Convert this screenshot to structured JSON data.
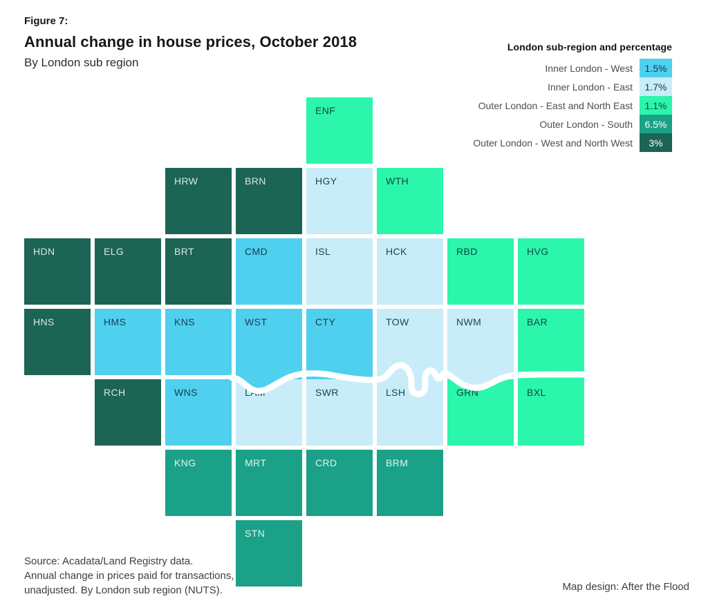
{
  "header": {
    "figure_label": "Figure 7:",
    "title": "Annual change in house prices, October 2018",
    "subtitle": "By London sub region"
  },
  "legend": {
    "title": "London sub-region and percentage"
  },
  "footer": {
    "source_lines": [
      "Source: Acadata/Land Registry data.",
      "Annual change in prices paid for transactions,",
      "unadjusted. By London sub region (NUTS)."
    ],
    "credit": "Map design: After the Flood"
  },
  "chart_data": {
    "type": "heatmap",
    "variant": "tile-cartogram-map",
    "title": "Annual change in house prices, October 2018",
    "subtitle": "By London sub region",
    "legend_title": "London sub-region and percentage",
    "unit": "percent annual change in house prices",
    "legend_position": "top-right",
    "series": [
      {
        "name": "Inner London - West",
        "value": 1.5,
        "value_label": "1.5%",
        "color": "#4fd0ee",
        "label_color": "#173d52",
        "legend_text_color": "#13384e",
        "boroughs": [
          "HMS",
          "KNS",
          "CMD",
          "WST",
          "CTY",
          "WNS"
        ]
      },
      {
        "name": "Inner London - East",
        "value": 1.7,
        "value_label": "1.7%",
        "color": "#c9ecf9",
        "label_color": "#1d4357",
        "legend_text_color": "#13384e",
        "boroughs": [
          "HGY",
          "ISL",
          "HCK",
          "TOW",
          "NWM",
          "LAM",
          "SWR",
          "LSH"
        ]
      },
      {
        "name": "Outer London - East and North East",
        "value": 1.1,
        "value_label": "1.1%",
        "color": "#2cf5ac",
        "label_color": "#0e4a40",
        "legend_text_color": "#0e4a40",
        "boroughs": [
          "ENF",
          "WTH",
          "RBD",
          "HVG",
          "BAR",
          "GRN",
          "BXL"
        ]
      },
      {
        "name": "Outer London - South",
        "value": 6.5,
        "value_label": "6.5%",
        "color": "#1aa187",
        "label_color": "#e3f4ef",
        "legend_text_color": "#ffffff",
        "boroughs": [
          "KNG",
          "MRT",
          "CRD",
          "BRM",
          "STN"
        ]
      },
      {
        "name": "Outer London - West and North West",
        "value": 3,
        "value_label": "3%",
        "color": "#1c6454",
        "label_color": "#d9e8e4",
        "legend_text_color": "#ffffff",
        "boroughs": [
          "HRW",
          "BRN",
          "HDN",
          "ELG",
          "BRT",
          "HNS",
          "RCH"
        ]
      }
    ],
    "tiles": [
      {
        "code": "ENF",
        "col": 4,
        "row": 0,
        "region": 2
      },
      {
        "code": "HRW",
        "col": 2,
        "row": 1,
        "region": 4
      },
      {
        "code": "BRN",
        "col": 3,
        "row": 1,
        "region": 4
      },
      {
        "code": "HGY",
        "col": 4,
        "row": 1,
        "region": 1
      },
      {
        "code": "WTH",
        "col": 5,
        "row": 1,
        "region": 2
      },
      {
        "code": "HDN",
        "col": 0,
        "row": 2,
        "region": 4
      },
      {
        "code": "ELG",
        "col": 1,
        "row": 2,
        "region": 4
      },
      {
        "code": "BRT",
        "col": 2,
        "row": 2,
        "region": 4
      },
      {
        "code": "CMD",
        "col": 3,
        "row": 2,
        "region": 0
      },
      {
        "code": "ISL",
        "col": 4,
        "row": 2,
        "region": 1
      },
      {
        "code": "HCK",
        "col": 5,
        "row": 2,
        "region": 1
      },
      {
        "code": "RBD",
        "col": 6,
        "row": 2,
        "region": 2
      },
      {
        "code": "HVG",
        "col": 7,
        "row": 2,
        "region": 2
      },
      {
        "code": "HNS",
        "col": 0,
        "row": 3,
        "region": 4
      },
      {
        "code": "HMS",
        "col": 1,
        "row": 3,
        "region": 0
      },
      {
        "code": "KNS",
        "col": 2,
        "row": 3,
        "region": 0
      },
      {
        "code": "WST",
        "col": 3,
        "row": 3,
        "region": 0,
        "extend": true
      },
      {
        "code": "CTY",
        "col": 4,
        "row": 3,
        "region": 0,
        "extend": true
      },
      {
        "code": "TOW",
        "col": 5,
        "row": 3,
        "region": 1,
        "extend": true
      },
      {
        "code": "NWM",
        "col": 6,
        "row": 3,
        "region": 1,
        "extend": true
      },
      {
        "code": "BAR",
        "col": 7,
        "row": 3,
        "region": 2,
        "extend": true
      },
      {
        "code": "RCH",
        "col": 1,
        "row": 4,
        "region": 4
      },
      {
        "code": "WNS",
        "col": 2,
        "row": 4,
        "region": 0
      },
      {
        "code": "LAM",
        "col": 3,
        "row": 4,
        "region": 1
      },
      {
        "code": "SWR",
        "col": 4,
        "row": 4,
        "region": 1
      },
      {
        "code": "LSH",
        "col": 5,
        "row": 4,
        "region": 1
      },
      {
        "code": "GRN",
        "col": 6,
        "row": 4,
        "region": 2
      },
      {
        "code": "BXL",
        "col": 7,
        "row": 4,
        "region": 2
      },
      {
        "code": "KNG",
        "col": 2,
        "row": 5,
        "region": 3
      },
      {
        "code": "MRT",
        "col": 3,
        "row": 5,
        "region": 3
      },
      {
        "code": "CRD",
        "col": 4,
        "row": 5,
        "region": 3
      },
      {
        "code": "BRM",
        "col": 5,
        "row": 5,
        "region": 3
      },
      {
        "code": "STN",
        "col": 3,
        "row": 6,
        "region": 3
      }
    ],
    "river": {
      "name": "River Thames",
      "color": "#ffffff"
    }
  }
}
